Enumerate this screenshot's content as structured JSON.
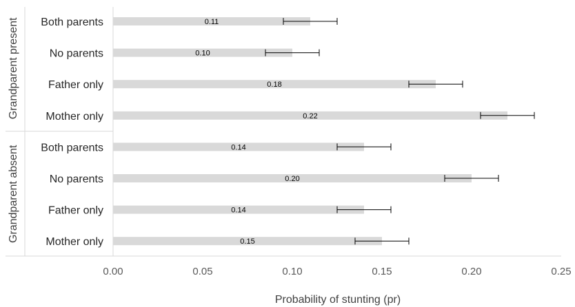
{
  "chart_data": {
    "type": "bar",
    "orientation": "horizontal",
    "xlabel": "Probability of stunting (pr)",
    "xlim": [
      0,
      0.25
    ],
    "xticks": [
      "0.00",
      "0.05",
      "0.10",
      "0.15",
      "0.20",
      "0.25"
    ],
    "grid": false,
    "bar_color": "#d9d9d9",
    "error_bar_color": "#000000",
    "groups": [
      {
        "label": "Grandparent present",
        "categories": [
          "Both parents",
          "No parents",
          "Father only",
          "Mother only"
        ],
        "values": [
          0.11,
          0.1,
          0.18,
          0.22
        ],
        "value_labels": [
          "0.11",
          "0.10",
          "0.18",
          "0.22"
        ],
        "error_low": [
          0.095,
          0.085,
          0.165,
          0.205
        ],
        "error_high": [
          0.125,
          0.115,
          0.195,
          0.235
        ]
      },
      {
        "label": "Grandparent absent",
        "categories": [
          "Both parents",
          "No parents",
          "Father only",
          "Mother only"
        ],
        "values": [
          0.14,
          0.2,
          0.14,
          0.15
        ],
        "value_labels": [
          "0.14",
          "0.20",
          "0.14",
          "0.15"
        ],
        "error_low": [
          0.125,
          0.185,
          0.125,
          0.135
        ],
        "error_high": [
          0.155,
          0.215,
          0.155,
          0.165
        ]
      }
    ]
  }
}
